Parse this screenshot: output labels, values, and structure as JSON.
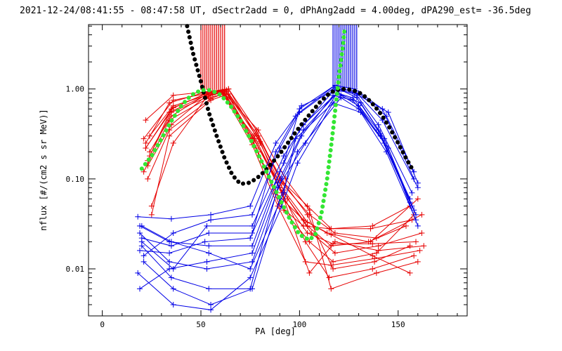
{
  "chart_data": {
    "type": "line",
    "title": "2021-12-24/08:41:55 - 08:47:58 UT, dSectr2add = 0, dPhAng2add = 4.00deg, dPA290_est= -36.5deg",
    "xlabel": "PA [deg]",
    "ylabel": "nflux [#/(cm2 s sr MeV)]",
    "xlim": [
      -7,
      185
    ],
    "ylim": [
      0.003,
      5.2
    ],
    "yscale": "log",
    "grid": false,
    "x_ticks": [
      0,
      50,
      100,
      150
    ],
    "x_tick_labels": [
      "0",
      "50",
      "100",
      "150"
    ],
    "y_ticks": [
      0.01,
      0.1,
      1.0
    ],
    "y_tick_labels": [
      "0.01",
      "0.10",
      "1.00"
    ],
    "colors": {
      "red": "#e60000",
      "blue": "#0000e6",
      "black": "#000000",
      "green": "#33e633"
    },
    "series": [
      {
        "style": "dotted-fit",
        "color": "black",
        "x": [
          43,
          46,
          50,
          54,
          58,
          62,
          66,
          70,
          74,
          78,
          82,
          86,
          90,
          94,
          98,
          102,
          106,
          110,
          114,
          118,
          122,
          126,
          130,
          134,
          138,
          142,
          146,
          150,
          154,
          158
        ],
        "y": [
          5.0,
          2.5,
          1.2,
          0.55,
          0.3,
          0.17,
          0.11,
          0.088,
          0.09,
          0.1,
          0.12,
          0.15,
          0.19,
          0.25,
          0.33,
          0.43,
          0.55,
          0.7,
          0.85,
          0.97,
          1.0,
          0.98,
          0.92,
          0.8,
          0.65,
          0.5,
          0.36,
          0.25,
          0.17,
          0.12
        ]
      },
      {
        "style": "dotted-fit",
        "color": "green",
        "x": [
          20,
          25,
          30,
          35,
          40,
          45,
          50,
          55,
          60,
          65,
          70,
          75,
          80,
          85,
          90,
          95,
          100,
          105,
          108,
          111,
          114,
          117,
          120,
          122,
          123
        ],
        "y": [
          0.13,
          0.18,
          0.28,
          0.44,
          0.65,
          0.85,
          0.97,
          0.97,
          0.86,
          0.65,
          0.45,
          0.28,
          0.17,
          0.1,
          0.06,
          0.036,
          0.024,
          0.021,
          0.024,
          0.04,
          0.1,
          0.35,
          1.4,
          3.0,
          5.0
        ]
      },
      {
        "style": "spikes",
        "color": "red",
        "x": [
          50,
          51,
          52,
          53,
          54,
          55,
          56,
          57,
          58,
          59,
          60,
          61,
          62
        ],
        "y_from": [
          0.98,
          0.98,
          0.98,
          0.98,
          0.98,
          0.98,
          0.98,
          0.98,
          0.98,
          0.98,
          0.98,
          0.98,
          0.98
        ],
        "y_to": [
          5.2,
          5.2,
          5.2,
          5.2,
          5.2,
          5.2,
          5.2,
          5.2,
          5.2,
          5.2,
          5.2,
          5.2,
          5.2
        ]
      },
      {
        "style": "spikes",
        "color": "blue",
        "x": [
          117,
          118,
          119,
          120,
          121,
          122,
          123,
          124,
          125,
          126,
          127,
          128,
          129
        ],
        "y_from": [
          1.02,
          1.02,
          1.02,
          1.02,
          1.02,
          1.02,
          1.02,
          1.02,
          1.02,
          1.02,
          1.02,
          1.02,
          1.02
        ],
        "y_to": [
          5.2,
          5.2,
          5.2,
          5.2,
          5.2,
          5.2,
          5.2,
          5.2,
          5.2,
          5.2,
          5.2,
          5.2,
          5.2
        ]
      },
      {
        "style": "cross",
        "color": "red",
        "x": [
          22,
          34,
          55,
          64,
          78,
          90,
          104,
          116,
          137,
          156
        ],
        "y": [
          0.22,
          0.55,
          0.9,
          1.0,
          0.35,
          0.1,
          0.05,
          0.028,
          0.03,
          0.05
        ]
      },
      {
        "style": "cross",
        "color": "red",
        "x": [
          24,
          36,
          53,
          61,
          76,
          88,
          102,
          114,
          135,
          154
        ],
        "y": [
          0.3,
          0.65,
          0.85,
          0.95,
          0.28,
          0.07,
          0.035,
          0.025,
          0.02,
          0.03
        ]
      },
      {
        "style": "cross",
        "color": "red",
        "x": [
          21,
          34,
          54,
          62,
          79,
          92,
          105,
          117,
          139,
          158
        ],
        "y": [
          0.12,
          0.45,
          0.8,
          0.88,
          0.2,
          0.045,
          0.02,
          0.012,
          0.015,
          0.04
        ]
      },
      {
        "style": "cross",
        "color": "red",
        "x": [
          23,
          35,
          52,
          60,
          77,
          90,
          104,
          116,
          136,
          160
        ],
        "y": [
          0.16,
          0.6,
          0.88,
          0.92,
          0.3,
          0.08,
          0.03,
          0.018,
          0.02,
          0.06
        ]
      },
      {
        "style": "cross",
        "color": "red",
        "x": [
          22,
          36,
          56,
          64,
          80,
          94,
          106,
          118,
          140,
          162
        ],
        "y": [
          0.45,
          0.85,
          0.95,
          1.0,
          0.25,
          0.06,
          0.025,
          0.015,
          0.018,
          0.025
        ]
      },
      {
        "style": "cross",
        "color": "red",
        "x": [
          24,
          35,
          54,
          63,
          78,
          92,
          104,
          117,
          138,
          156
        ],
        "y": [
          0.2,
          0.5,
          0.9,
          0.97,
          0.32,
          0.09,
          0.04,
          0.01,
          0.012,
          0.018
        ]
      },
      {
        "style": "cross",
        "color": "red",
        "x": [
          23,
          34,
          55,
          62,
          76,
          90,
          103,
          115,
          137,
          158
        ],
        "y": [
          0.1,
          0.35,
          0.78,
          0.9,
          0.3,
          0.08,
          0.02,
          0.008,
          0.01,
          0.014
        ]
      },
      {
        "style": "cross",
        "color": "red",
        "x": [
          25,
          36,
          53,
          61,
          79,
          93,
          105,
          116,
          139,
          160
        ],
        "y": [
          0.05,
          0.25,
          0.82,
          0.94,
          0.35,
          0.1,
          0.045,
          0.006,
          0.009,
          0.012
        ]
      },
      {
        "style": "cross",
        "color": "red",
        "x": [
          22,
          34,
          52,
          60,
          77,
          91,
          105,
          118,
          140,
          163
        ],
        "y": [
          0.25,
          0.7,
          0.92,
          0.97,
          0.28,
          0.07,
          0.009,
          0.02,
          0.016,
          0.018
        ]
      },
      {
        "style": "cross",
        "color": "red",
        "x": [
          24,
          35,
          56,
          63,
          78,
          90,
          102,
          115,
          136,
          157
        ],
        "y": [
          0.18,
          0.55,
          0.86,
          0.93,
          0.22,
          0.05,
          0.03,
          0.028,
          0.028,
          0.035
        ]
      },
      {
        "style": "cross",
        "color": "red",
        "x": [
          21,
          36,
          54,
          62,
          80,
          92,
          104,
          117,
          137,
          159
        ],
        "y": [
          0.28,
          0.75,
          0.9,
          0.99,
          0.26,
          0.06,
          0.025,
          0.019,
          0.019,
          0.02
        ]
      },
      {
        "style": "cross",
        "color": "red",
        "x": [
          23,
          35,
          53,
          61,
          76,
          89,
          103,
          116,
          138,
          161
        ],
        "y": [
          0.14,
          0.4,
          0.85,
          0.9,
          0.24,
          0.05,
          0.012,
          0.011,
          0.013,
          0.016
        ]
      },
      {
        "style": "cross",
        "color": "red",
        "x": [
          25,
          34,
          55,
          64,
          79,
          91,
          105,
          118,
          139,
          162
        ],
        "y": [
          0.04,
          0.3,
          0.75,
          0.88,
          0.3,
          0.09,
          0.04,
          0.025,
          0.022,
          0.04
        ]
      },
      {
        "style": "cross",
        "color": "red",
        "x": [
          22,
          36,
          54,
          62,
          77,
          92,
          104,
          116,
          137,
          156
        ],
        "y": [
          0.22,
          0.62,
          0.91,
          0.98,
          0.27,
          0.075,
          0.033,
          0.024,
          0.014,
          0.009
        ]
      },
      {
        "style": "cross",
        "color": "blue",
        "x": [
          19,
          34,
          54,
          76,
          90,
          100,
          118,
          128,
          142,
          160
        ],
        "y": [
          0.03,
          0.02,
          0.018,
          0.018,
          0.12,
          0.35,
          1.0,
          0.95,
          0.45,
          0.08
        ]
      },
      {
        "style": "cross",
        "color": "blue",
        "x": [
          20,
          36,
          53,
          76,
          92,
          102,
          120,
          130,
          144,
          158
        ],
        "y": [
          0.02,
          0.01,
          0.03,
          0.03,
          0.18,
          0.4,
          0.95,
          0.9,
          0.5,
          0.12
        ]
      },
      {
        "style": "cross",
        "color": "blue",
        "x": [
          18,
          35,
          55,
          75,
          88,
          98,
          118,
          129,
          140,
          156
        ],
        "y": [
          0.038,
          0.036,
          0.04,
          0.05,
          0.25,
          0.5,
          1.05,
          0.8,
          0.35,
          0.06
        ]
      },
      {
        "style": "cross",
        "color": "blue",
        "x": [
          19,
          34,
          53,
          76,
          91,
          101,
          117,
          127,
          141,
          157
        ],
        "y": [
          0.025,
          0.012,
          0.01,
          0.012,
          0.1,
          0.3,
          0.85,
          0.75,
          0.3,
          0.05
        ]
      },
      {
        "style": "cross",
        "color": "blue",
        "x": [
          20,
          35,
          54,
          75,
          89,
          103,
          119,
          131,
          143,
          159
        ],
        "y": [
          0.018,
          0.008,
          0.006,
          0.006,
          0.08,
          0.25,
          0.9,
          0.7,
          0.28,
          0.04
        ]
      },
      {
        "style": "cross",
        "color": "blue",
        "x": [
          21,
          36,
          55,
          76,
          90,
          99,
          121,
          130,
          145,
          160
        ],
        "y": [
          0.012,
          0.006,
          0.004,
          0.006,
          0.06,
          0.2,
          0.8,
          0.6,
          0.22,
          0.03
        ]
      },
      {
        "style": "cross",
        "color": "blue",
        "x": [
          19,
          34,
          52,
          75,
          92,
          100,
          118,
          128,
          142,
          158
        ],
        "y": [
          0.016,
          0.015,
          0.02,
          0.022,
          0.15,
          0.6,
          1.1,
          1.0,
          0.6,
          0.1
        ]
      },
      {
        "style": "cross",
        "color": "blue",
        "x": [
          20,
          35,
          54,
          76,
          88,
          101,
          120,
          129,
          140,
          157
        ],
        "y": [
          0.022,
          0.018,
          0.025,
          0.025,
          0.2,
          0.65,
          1.0,
          0.85,
          0.4,
          0.07
        ]
      },
      {
        "style": "cross",
        "color": "blue",
        "x": [
          18,
          36,
          55,
          75,
          91,
          99,
          117,
          131,
          144,
          159
        ],
        "y": [
          0.009,
          0.004,
          0.0035,
          0.008,
          0.05,
          0.15,
          0.7,
          0.55,
          0.2,
          0.035
        ]
      },
      {
        "style": "cross",
        "color": "blue",
        "x": [
          19,
          34,
          53,
          76,
          89,
          102,
          119,
          127,
          141,
          156
        ],
        "y": [
          0.006,
          0.01,
          0.012,
          0.015,
          0.09,
          0.35,
          0.9,
          0.8,
          0.32,
          0.055
        ]
      },
      {
        "style": "cross",
        "color": "blue",
        "x": [
          20,
          35,
          54,
          75,
          92,
          98,
          121,
          130,
          143,
          158
        ],
        "y": [
          0.03,
          0.02,
          0.015,
          0.01,
          0.07,
          0.28,
          0.85,
          0.65,
          0.25,
          0.045
        ]
      },
      {
        "style": "cross",
        "color": "blue",
        "x": [
          21,
          36,
          55,
          76,
          90,
          100,
          118,
          128,
          145,
          160
        ],
        "y": [
          0.014,
          0.025,
          0.035,
          0.04,
          0.22,
          0.55,
          1.1,
          0.9,
          0.55,
          0.09
        ]
      }
    ]
  }
}
